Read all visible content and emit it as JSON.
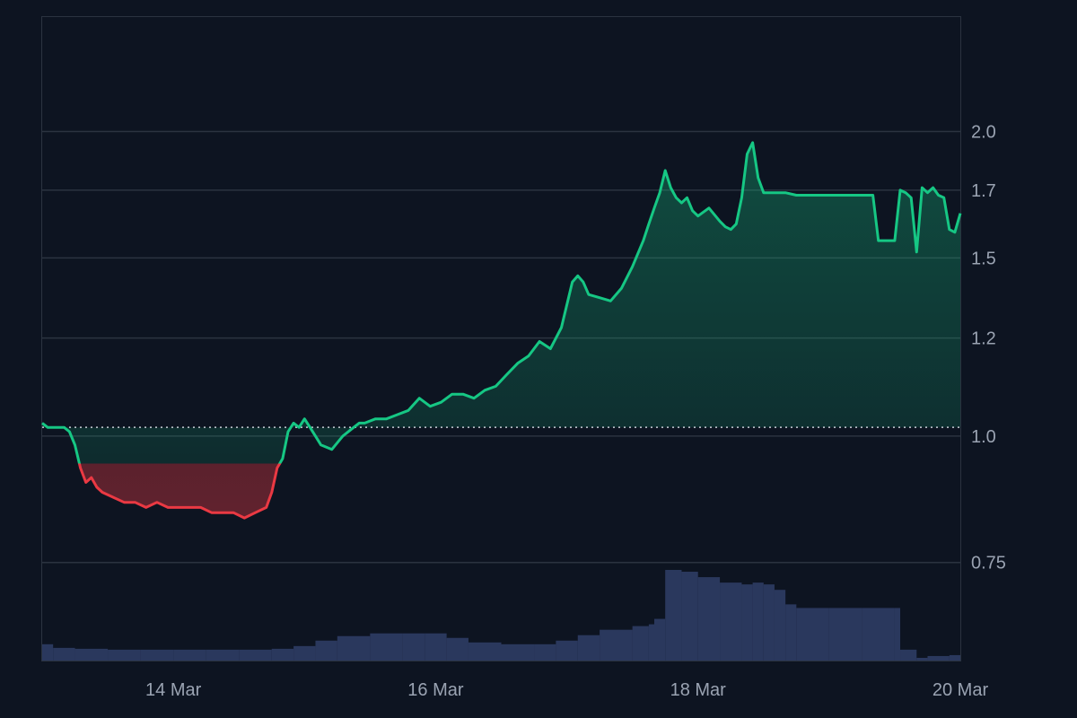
{
  "chart_data": {
    "type": "area",
    "title": "",
    "xlabel": "",
    "ylabel": "",
    "y_scale": "log",
    "ylim": [
      0.6,
      2.6
    ],
    "xlim": [
      "2024-03-13T00:00",
      "2024-03-20T00:00"
    ],
    "baseline": 1.02,
    "y_ticks": [
      {
        "value": 0.75,
        "label": "0.75"
      },
      {
        "value": 1.0,
        "label": "1.0"
      },
      {
        "value": 1.25,
        "label": "1.2"
      },
      {
        "value": 1.5,
        "label": "1.5"
      },
      {
        "value": 1.75,
        "label": "1.7"
      },
      {
        "value": 2.0,
        "label": "2.0"
      }
    ],
    "x_ticks": [
      {
        "value": "2024-03-14T00:00",
        "label": "14 Mar"
      },
      {
        "value": "2024-03-16T00:00",
        "label": "16 Mar"
      },
      {
        "value": "2024-03-18T00:00",
        "label": "18 Mar"
      },
      {
        "value": "2024-03-20T00:00",
        "label": "20 Mar"
      }
    ],
    "grid": true,
    "price_series": {
      "x": [
        "2024-03-13T00:00",
        "2024-03-13T01:00",
        "2024-03-13T03:00",
        "2024-03-13T04:00",
        "2024-03-13T05:00",
        "2024-03-13T06:00",
        "2024-03-13T07:00",
        "2024-03-13T08:00",
        "2024-03-13T09:00",
        "2024-03-13T10:00",
        "2024-03-13T11:00",
        "2024-03-13T13:00",
        "2024-03-13T15:00",
        "2024-03-13T17:00",
        "2024-03-13T19:00",
        "2024-03-13T21:00",
        "2024-03-13T23:00",
        "2024-03-14T01:00",
        "2024-03-14T03:00",
        "2024-03-14T05:00",
        "2024-03-14T07:00",
        "2024-03-14T09:00",
        "2024-03-14T11:00",
        "2024-03-14T13:00",
        "2024-03-14T15:00",
        "2024-03-14T17:00",
        "2024-03-14T18:00",
        "2024-03-14T19:00",
        "2024-03-14T20:00",
        "2024-03-14T21:00",
        "2024-03-14T22:00",
        "2024-03-14T23:00",
        "2024-03-15T00:00",
        "2024-03-15T01:00",
        "2024-03-15T02:00",
        "2024-03-15T03:00",
        "2024-03-15T05:00",
        "2024-03-15T07:00",
        "2024-03-15T09:00",
        "2024-03-15T10:00",
        "2024-03-15T11:00",
        "2024-03-15T13:00",
        "2024-03-15T15:00",
        "2024-03-15T17:00",
        "2024-03-15T19:00",
        "2024-03-15T21:00",
        "2024-03-15T23:00",
        "2024-03-16T01:00",
        "2024-03-16T03:00",
        "2024-03-16T05:00",
        "2024-03-16T07:00",
        "2024-03-16T09:00",
        "2024-03-16T11:00",
        "2024-03-16T13:00",
        "2024-03-16T15:00",
        "2024-03-16T17:00",
        "2024-03-16T19:00",
        "2024-03-16T21:00",
        "2024-03-16T23:00",
        "2024-03-17T01:00",
        "2024-03-17T02:00",
        "2024-03-17T03:00",
        "2024-03-17T04:00",
        "2024-03-17T06:00",
        "2024-03-17T08:00",
        "2024-03-17T10:00",
        "2024-03-17T12:00",
        "2024-03-17T14:00",
        "2024-03-17T15:00",
        "2024-03-17T16:00",
        "2024-03-17T17:00",
        "2024-03-17T18:00",
        "2024-03-17T19:00",
        "2024-03-17T20:00",
        "2024-03-17T21:00",
        "2024-03-17T22:00",
        "2024-03-17T23:00",
        "2024-03-18T00:00",
        "2024-03-18T02:00",
        "2024-03-18T04:00",
        "2024-03-18T05:00",
        "2024-03-18T06:00",
        "2024-03-18T07:00",
        "2024-03-18T08:00",
        "2024-03-18T09:00",
        "2024-03-18T10:00",
        "2024-03-18T11:00",
        "2024-03-18T12:00",
        "2024-03-18T14:00",
        "2024-03-18T16:00",
        "2024-03-18T18:00",
        "2024-03-18T20:00",
        "2024-03-18T22:00",
        "2024-03-19T00:00",
        "2024-03-19T02:00",
        "2024-03-19T04:00",
        "2024-03-19T06:00",
        "2024-03-19T08:00",
        "2024-03-19T09:00",
        "2024-03-19T10:00",
        "2024-03-19T11:00",
        "2024-03-19T12:00",
        "2024-03-19T13:00",
        "2024-03-19T14:00",
        "2024-03-19T15:00",
        "2024-03-19T16:00",
        "2024-03-19T17:00",
        "2024-03-19T18:00",
        "2024-03-19T19:00",
        "2024-03-19T20:00",
        "2024-03-19T21:00",
        "2024-03-19T22:00",
        "2024-03-19T23:00",
        "2024-03-20T00:00"
      ],
      "y": [
        1.03,
        1.02,
        1.02,
        1.02,
        1.01,
        0.98,
        0.93,
        0.9,
        0.91,
        0.89,
        0.88,
        0.87,
        0.86,
        0.86,
        0.85,
        0.86,
        0.85,
        0.85,
        0.85,
        0.85,
        0.84,
        0.84,
        0.84,
        0.83,
        0.84,
        0.85,
        0.88,
        0.93,
        0.95,
        1.01,
        1.03,
        1.02,
        1.04,
        1.02,
        1.0,
        0.98,
        0.97,
        1.0,
        1.02,
        1.03,
        1.03,
        1.04,
        1.04,
        1.05,
        1.06,
        1.09,
        1.07,
        1.08,
        1.1,
        1.1,
        1.09,
        1.11,
        1.12,
        1.15,
        1.18,
        1.2,
        1.24,
        1.22,
        1.28,
        1.42,
        1.44,
        1.42,
        1.38,
        1.37,
        1.36,
        1.4,
        1.47,
        1.56,
        1.62,
        1.68,
        1.74,
        1.83,
        1.76,
        1.72,
        1.7,
        1.72,
        1.67,
        1.65,
        1.68,
        1.63,
        1.61,
        1.6,
        1.62,
        1.72,
        1.9,
        1.95,
        1.8,
        1.74,
        1.74,
        1.74,
        1.73,
        1.73,
        1.73,
        1.73,
        1.73,
        1.73,
        1.73,
        1.73,
        1.56,
        1.56,
        1.56,
        1.56,
        1.75,
        1.74,
        1.72,
        1.52,
        1.76,
        1.74,
        1.76,
        1.73,
        1.72,
        1.6,
        1.59,
        1.66
      ]
    },
    "volume_series": {
      "x": [
        "2024-03-13T00:00",
        "2024-03-13T02:00",
        "2024-03-13T06:00",
        "2024-03-13T12:00",
        "2024-03-13T18:00",
        "2024-03-14T00:00",
        "2024-03-14T06:00",
        "2024-03-14T12:00",
        "2024-03-14T18:00",
        "2024-03-14T22:00",
        "2024-03-15T02:00",
        "2024-03-15T06:00",
        "2024-03-15T12:00",
        "2024-03-15T18:00",
        "2024-03-15T22:00",
        "2024-03-16T02:00",
        "2024-03-16T06:00",
        "2024-03-16T12:00",
        "2024-03-16T18:00",
        "2024-03-16T22:00",
        "2024-03-17T02:00",
        "2024-03-17T06:00",
        "2024-03-17T12:00",
        "2024-03-17T15:00",
        "2024-03-17T16:00",
        "2024-03-17T18:00",
        "2024-03-17T21:00",
        "2024-03-18T00:00",
        "2024-03-18T04:00",
        "2024-03-18T08:00",
        "2024-03-18T10:00",
        "2024-03-18T12:00",
        "2024-03-18T14:00",
        "2024-03-18T16:00",
        "2024-03-18T18:00",
        "2024-03-19T00:00",
        "2024-03-19T06:00",
        "2024-03-19T12:00",
        "2024-03-19T13:00",
        "2024-03-19T16:00",
        "2024-03-19T18:00",
        "2024-03-19T22:00",
        "2024-03-20T00:00"
      ],
      "values": [
        18,
        14,
        13,
        12,
        12,
        12,
        12,
        12,
        13,
        16,
        22,
        27,
        30,
        30,
        30,
        25,
        20,
        18,
        18,
        22,
        28,
        34,
        38,
        40,
        46,
        100,
        98,
        92,
        86,
        84,
        86,
        84,
        78,
        62,
        58,
        58,
        58,
        58,
        12,
        3,
        5,
        6,
        8
      ]
    }
  }
}
